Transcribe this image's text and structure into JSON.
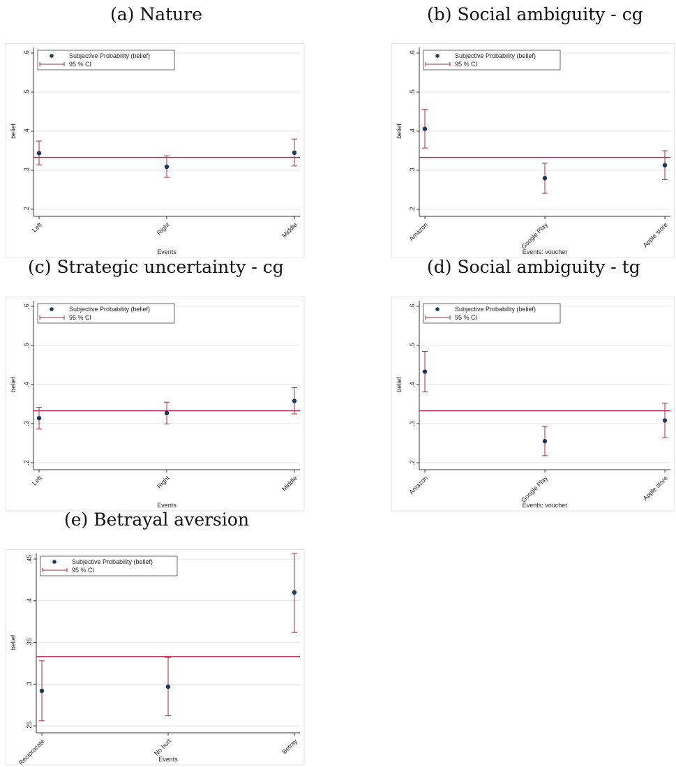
{
  "captions": [
    "(a) Nature",
    "(b) Social ambiguity - cg",
    "(c) Strategic uncertainty - cg",
    "(d) Social ambiguity - tg",
    "(e) Betrayal aversion"
  ],
  "colors": {
    "point": "#1a3a5c",
    "ci": "#a0303a",
    "ref": "#c02050",
    "grid": "#e6e6e6",
    "frame": "#e3e3e3"
  },
  "chart_data": [
    {
      "type": "scatter",
      "ylabel": "belief",
      "xlabel": "Events",
      "categories": [
        "Left",
        "Right",
        "Middle"
      ],
      "ylim": [
        0.2,
        0.6
      ],
      "yticks": [
        0.2,
        0.3,
        0.4,
        0.5,
        0.6
      ],
      "ytick_labels": [
        ".2",
        ".3",
        ".4",
        ".5",
        ".6"
      ],
      "series": [
        {
          "name": "Subjective Probability (belief)",
          "values": [
            0.344,
            0.309,
            0.345
          ]
        },
        {
          "name": "95 % CI",
          "lower": [
            0.314,
            0.282,
            0.311
          ],
          "upper": [
            0.375,
            0.337,
            0.38
          ]
        }
      ],
      "reference_line": 0.333,
      "grid": true,
      "legend": "top-left"
    },
    {
      "type": "scatter",
      "ylabel": "belief",
      "xlabel": "Events: voucher",
      "categories": [
        "Amazon",
        "Google Play",
        "Apple store"
      ],
      "ylim": [
        0.2,
        0.6
      ],
      "yticks": [
        0.2,
        0.3,
        0.4,
        0.5,
        0.6
      ],
      "ytick_labels": [
        ".2",
        ".3",
        ".4",
        ".5",
        ".6"
      ],
      "series": [
        {
          "name": "Subjective Probability (belief)",
          "values": [
            0.406,
            0.28,
            0.313
          ]
        },
        {
          "name": "95 % CI",
          "lower": [
            0.357,
            0.241,
            0.276
          ],
          "upper": [
            0.456,
            0.318,
            0.35
          ]
        }
      ],
      "reference_line": 0.333,
      "grid": true,
      "legend": "top-left"
    },
    {
      "type": "scatter",
      "ylabel": "belief",
      "xlabel": "Events",
      "categories": [
        "Left",
        "Right",
        "Middle"
      ],
      "ylim": [
        0.2,
        0.6
      ],
      "yticks": [
        0.2,
        0.3,
        0.4,
        0.5,
        0.6
      ],
      "ytick_labels": [
        ".2",
        ".3",
        ".4",
        ".5",
        ".6"
      ],
      "series": [
        {
          "name": "Subjective Probability (belief)",
          "values": [
            0.314,
            0.327,
            0.358
          ]
        },
        {
          "name": "95 % CI",
          "lower": [
            0.286,
            0.299,
            0.325
          ],
          "upper": [
            0.342,
            0.355,
            0.392
          ]
        }
      ],
      "reference_line": 0.333,
      "grid": true,
      "legend": "top-left"
    },
    {
      "type": "scatter",
      "ylabel": "belief",
      "xlabel": "Events: voucher",
      "categories": [
        "Amazon",
        "Google Play",
        "Apple store"
      ],
      "ylim": [
        0.2,
        0.6
      ],
      "yticks": [
        0.2,
        0.3,
        0.4,
        0.5,
        0.6
      ],
      "ytick_labels": [
        ".2",
        ".3",
        ".4",
        ".5",
        ".6"
      ],
      "series": [
        {
          "name": "Subjective Probability (belief)",
          "values": [
            0.433,
            0.255,
            0.308
          ]
        },
        {
          "name": "95 % CI",
          "lower": [
            0.381,
            0.218,
            0.264
          ],
          "upper": [
            0.485,
            0.293,
            0.352
          ]
        }
      ],
      "reference_line": 0.333,
      "grid": true,
      "legend": "top-left"
    },
    {
      "type": "scatter",
      "ylabel": "belief",
      "xlabel": "Events",
      "categories": [
        "Reciprocate",
        "No hurt",
        "Betray"
      ],
      "ylim": [
        0.25,
        0.45
      ],
      "yticks": [
        0.25,
        0.3,
        0.35,
        0.4,
        0.45
      ],
      "ytick_labels": [
        ".25",
        ".3",
        ".35",
        ".4",
        ".45"
      ],
      "series": [
        {
          "name": "Subjective Probability (belief)",
          "values": [
            0.292,
            0.297,
            0.41
          ]
        },
        {
          "name": "95 % CI",
          "lower": [
            0.256,
            0.262,
            0.362
          ],
          "upper": [
            0.328,
            0.332,
            0.457
          ]
        }
      ],
      "reference_line": 0.333,
      "grid": true,
      "legend": "top-left"
    }
  ]
}
